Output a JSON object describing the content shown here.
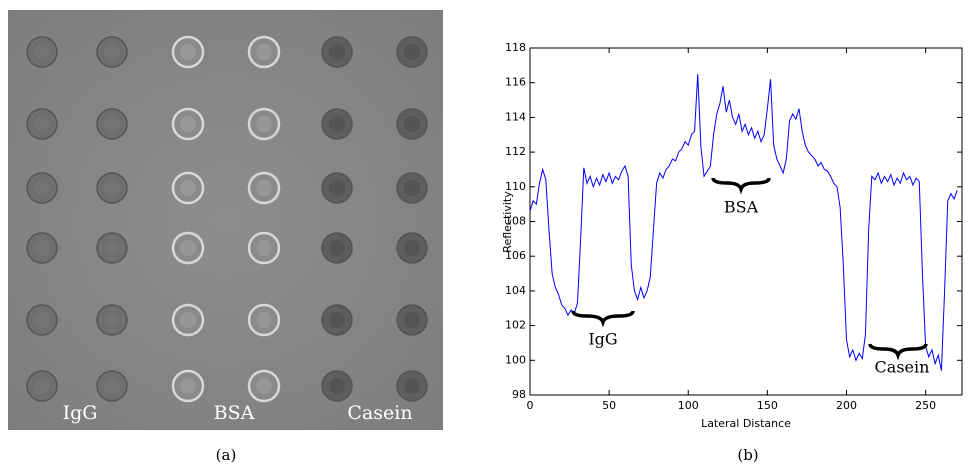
{
  "image_panel": {
    "labels": [
      "IgG",
      "BSA",
      "Casein"
    ]
  },
  "captions": [
    "(a)",
    "(b)"
  ],
  "chart_data": {
    "type": "line",
    "xlabel": "Lateral Distance",
    "ylabel": "Reflectivity",
    "annotations": [
      "IgG",
      "BSA",
      "Casein"
    ],
    "color": "#0000ff",
    "xlim": [
      0,
      273
    ],
    "ylim": [
      98,
      118
    ],
    "xticks": [
      0,
      50,
      100,
      150,
      200,
      250
    ],
    "yticks": [
      98,
      100,
      102,
      104,
      106,
      108,
      110,
      112,
      114,
      116,
      118
    ],
    "x": [
      0,
      2,
      4,
      6,
      8,
      10,
      12,
      14,
      16,
      18,
      20,
      22,
      24,
      26,
      28,
      30,
      32,
      34,
      36,
      38,
      40,
      42,
      44,
      46,
      48,
      50,
      52,
      54,
      56,
      58,
      60,
      62,
      64,
      66,
      68,
      70,
      72,
      74,
      76,
      78,
      80,
      82,
      84,
      86,
      88,
      90,
      92,
      94,
      96,
      98,
      100,
      102,
      104,
      106,
      108,
      110,
      112,
      114,
      116,
      118,
      120,
      122,
      124,
      126,
      128,
      130,
      132,
      134,
      136,
      138,
      140,
      142,
      144,
      146,
      148,
      150,
      152,
      154,
      156,
      158,
      160,
      162,
      164,
      166,
      168,
      170,
      172,
      174,
      176,
      178,
      180,
      182,
      184,
      186,
      188,
      190,
      192,
      194,
      196,
      198,
      200,
      202,
      204,
      206,
      208,
      210,
      212,
      214,
      216,
      218,
      220,
      222,
      224,
      226,
      228,
      230,
      232,
      234,
      236,
      238,
      240,
      242,
      244,
      246,
      248,
      250,
      252,
      254,
      256,
      258,
      260,
      262,
      264,
      266,
      268,
      270
    ],
    "values": [
      108.6,
      109.2,
      109.0,
      110.2,
      111.0,
      110.4,
      107.5,
      105.0,
      104.2,
      103.8,
      103.2,
      103.0,
      102.6,
      102.9,
      102.7,
      103.3,
      107.0,
      111.1,
      110.2,
      110.6,
      110.0,
      110.5,
      110.1,
      110.7,
      110.3,
      110.8,
      110.2,
      110.6,
      110.4,
      110.9,
      111.2,
      110.6,
      105.5,
      104.0,
      103.5,
      104.2,
      103.6,
      104.0,
      104.8,
      107.5,
      110.2,
      110.8,
      110.5,
      111.0,
      111.2,
      111.6,
      111.5,
      112.0,
      112.2,
      112.6,
      112.4,
      113.0,
      113.2,
      116.5,
      112.3,
      110.6,
      110.9,
      111.2,
      113.0,
      114.2,
      114.8,
      115.8,
      114.3,
      115.0,
      114.0,
      113.6,
      114.2,
      113.2,
      113.6,
      113.0,
      113.4,
      112.8,
      113.2,
      112.6,
      113.0,
      114.5,
      116.2,
      112.4,
      111.6,
      111.2,
      110.8,
      111.6,
      113.8,
      114.2,
      113.9,
      114.5,
      113.2,
      112.4,
      112.0,
      111.8,
      111.6,
      111.2,
      111.4,
      111.0,
      110.9,
      110.6,
      110.2,
      110.0,
      108.8,
      105.5,
      101.2,
      100.2,
      100.6,
      100.0,
      100.4,
      100.1,
      101.5,
      107.5,
      110.6,
      110.4,
      110.8,
      110.2,
      110.6,
      110.3,
      110.7,
      110.1,
      110.5,
      110.2,
      110.8,
      110.4,
      110.6,
      110.1,
      110.5,
      110.3,
      105.0,
      100.8,
      100.2,
      100.6,
      99.8,
      100.3,
      99.4,
      104.0,
      109.2,
      109.6,
      109.3,
      109.8
    ]
  }
}
